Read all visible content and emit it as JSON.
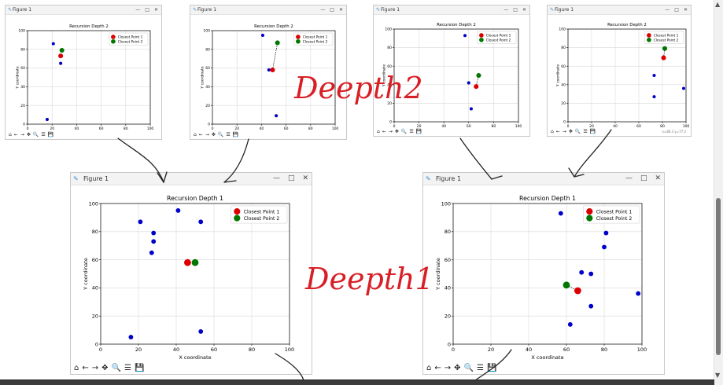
{
  "window": {
    "title": "Figure 1",
    "title_icon": "figure-icon",
    "controls": [
      "—",
      "□",
      "✕"
    ],
    "toolbar_icons": [
      "⌂",
      "←",
      "→",
      "✥",
      "🔍",
      "☰",
      "💾"
    ]
  },
  "chart_data": [
    {
      "type": "scatter",
      "title": "Recursion Depth 2",
      "xlabel": "X coordinate",
      "ylabel": "Y coordinate",
      "xlim": [
        0,
        100
      ],
      "ylim": [
        0,
        100
      ],
      "xticks": [
        0,
        20,
        40,
        60,
        80,
        100
      ],
      "yticks": [
        0,
        20,
        40,
        60,
        80,
        100
      ],
      "grid": true,
      "legend": "top-right",
      "points": [
        [
          21,
          86
        ],
        [
          27,
          65
        ],
        [
          16,
          5
        ]
      ],
      "closest": [
        [
          27,
          73
        ],
        [
          28,
          79
        ]
      ],
      "connect": false,
      "status_text": ""
    },
    {
      "type": "scatter",
      "title": "Recursion Depth 2",
      "xlabel": "X coordinate",
      "ylabel": "Y coordinate",
      "xlim": [
        0,
        100
      ],
      "ylim": [
        0,
        100
      ],
      "xticks": [
        0,
        20,
        40,
        60,
        80,
        100
      ],
      "yticks": [
        0,
        20,
        40,
        60,
        80,
        100
      ],
      "grid": true,
      "legend": "top-right",
      "points": [
        [
          41,
          95
        ],
        [
          46,
          58
        ],
        [
          52,
          9
        ]
      ],
      "closest": [
        [
          49,
          58
        ],
        [
          53,
          87
        ]
      ],
      "connect": true,
      "status_text": ""
    },
    {
      "type": "scatter",
      "title": "Recursion Depth 2",
      "xlabel": "X coordinate",
      "ylabel": "Y coordinate",
      "xlim": [
        0,
        100
      ],
      "ylim": [
        0,
        100
      ],
      "xticks": [
        0,
        20,
        40,
        60,
        80,
        100
      ],
      "yticks": [
        0,
        20,
        40,
        60,
        80,
        100
      ],
      "grid": true,
      "legend": "top-right",
      "points": [
        [
          57,
          93
        ],
        [
          60,
          42
        ],
        [
          62,
          14
        ]
      ],
      "closest": [
        [
          66,
          38
        ],
        [
          68,
          50
        ]
      ],
      "connect": true,
      "status_text": ""
    },
    {
      "type": "scatter",
      "title": "Recursion Depth 2",
      "xlabel": "X coordinate",
      "ylabel": "Y coordinate",
      "xlim": [
        0,
        100
      ],
      "ylim": [
        0,
        100
      ],
      "xticks": [
        0,
        20,
        40,
        60,
        80,
        100
      ],
      "yticks": [
        0,
        20,
        40,
        60,
        80,
        100
      ],
      "grid": true,
      "legend": "top-right",
      "points": [
        [
          73,
          50
        ],
        [
          73,
          27
        ],
        [
          98,
          36
        ]
      ],
      "closest": [
        [
          81,
          69
        ],
        [
          82,
          79
        ]
      ],
      "connect": true,
      "status_text": "x=86.3  y=77.2"
    },
    {
      "type": "scatter",
      "title": "Recursion Depth 1",
      "xlabel": "X coordinate",
      "ylabel": "Y coordinate",
      "xlim": [
        0,
        100
      ],
      "ylim": [
        0,
        100
      ],
      "xticks": [
        0,
        20,
        40,
        60,
        80,
        100
      ],
      "yticks": [
        0,
        20,
        40,
        60,
        80,
        100
      ],
      "grid": true,
      "legend": "top-right",
      "points": [
        [
          21,
          87
        ],
        [
          28,
          79
        ],
        [
          28,
          73
        ],
        [
          27,
          65
        ],
        [
          41,
          95
        ],
        [
          53,
          87
        ],
        [
          16,
          5
        ],
        [
          53,
          9
        ]
      ],
      "closest": [
        [
          46,
          58
        ],
        [
          50,
          58
        ]
      ],
      "connect": true,
      "status_text": ""
    },
    {
      "type": "scatter",
      "title": "Recursion Depth 1",
      "xlabel": "X coordinate",
      "ylabel": "Y coordinate",
      "xlim": [
        0,
        100
      ],
      "ylim": [
        0,
        100
      ],
      "xticks": [
        0,
        20,
        40,
        60,
        80,
        100
      ],
      "yticks": [
        0,
        20,
        40,
        60,
        80,
        100
      ],
      "grid": true,
      "legend": "top-right",
      "points": [
        [
          57,
          93
        ],
        [
          81,
          79
        ],
        [
          80,
          69
        ],
        [
          68,
          51
        ],
        [
          73,
          50
        ],
        [
          73,
          27
        ],
        [
          62,
          14
        ],
        [
          98,
          36
        ]
      ],
      "closest": [
        [
          66,
          38
        ],
        [
          60,
          42
        ]
      ],
      "connect": true,
      "status_text": ""
    }
  ],
  "legend": {
    "p1": "Closest Point 1",
    "p2": "Closest Point 2"
  },
  "colors": {
    "points": "#0000cc",
    "p1": "#dd0000",
    "p2": "#007700",
    "grid": "#d9d9d9",
    "annotation": "#d81f26"
  },
  "annotations": {
    "depth2": "Deepth2",
    "depth1": "Deepth1"
  }
}
